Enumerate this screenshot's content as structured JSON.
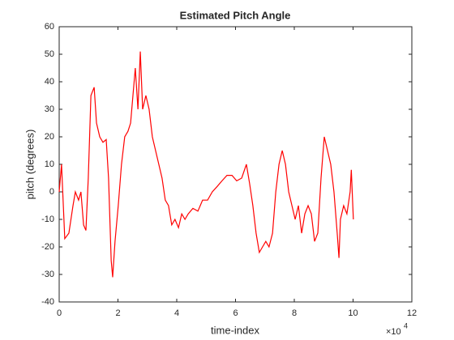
{
  "chart_data": {
    "type": "line",
    "title": "Estimated Pitch Angle",
    "x_label": "time-index",
    "y_label": "pitch (degrees)",
    "x_multiplier": {
      "base": "×10",
      "exponent": "4"
    },
    "xlim": [
      0,
      12
    ],
    "xticks": [
      0,
      2,
      4,
      6,
      8,
      10,
      12
    ],
    "ylim": [
      -40,
      60
    ],
    "yticks": [
      -40,
      -30,
      -20,
      -10,
      0,
      10,
      20,
      30,
      40,
      50,
      60
    ],
    "grid": false,
    "series": [
      {
        "name": "pitch",
        "color": "#ff0000",
        "x": [
          0,
          0.08,
          0.19,
          0.33,
          0.47,
          0.55,
          0.66,
          0.74,
          0.83,
          0.91,
          0.99,
          1.08,
          1.19,
          1.27,
          1.38,
          1.49,
          1.6,
          1.68,
          1.77,
          1.82,
          1.9,
          2.01,
          2.12,
          2.23,
          2.34,
          2.43,
          2.51,
          2.59,
          2.68,
          2.76,
          2.84,
          2.95,
          3.06,
          3.17,
          3.28,
          3.39,
          3.5,
          3.61,
          3.72,
          3.83,
          3.94,
          4.06,
          4.17,
          4.28,
          4.39,
          4.55,
          4.72,
          4.88,
          5.05,
          5.21,
          5.38,
          5.54,
          5.71,
          5.88,
          6.04,
          6.21,
          6.37,
          6.48,
          6.59,
          6.7,
          6.81,
          6.92,
          7.03,
          7.14,
          7.26,
          7.37,
          7.48,
          7.59,
          7.7,
          7.81,
          7.92,
          8.03,
          8.14,
          8.25,
          8.36,
          8.47,
          8.58,
          8.69,
          8.8,
          8.91,
          9.02,
          9.13,
          9.24,
          9.35,
          9.46,
          9.52,
          9.57,
          9.68,
          9.79,
          9.9,
          9.94,
          10.01
        ],
        "values": [
          0,
          10,
          -17,
          -15,
          -5,
          0,
          -3,
          0,
          -12,
          -14,
          5,
          35,
          38,
          25,
          20,
          18,
          19,
          5,
          -25,
          -31,
          -18,
          -5,
          10,
          20,
          22,
          25,
          35,
          45,
          30,
          51,
          30,
          35,
          30,
          20,
          15,
          10,
          5,
          -3,
          -5,
          -12,
          -10,
          -13,
          -8,
          -10,
          -8,
          -6,
          -7,
          -3,
          -3,
          0,
          2,
          4,
          6,
          6,
          4,
          5,
          10,
          3,
          -5,
          -15,
          -22,
          -20,
          -18,
          -20,
          -15,
          0,
          10,
          15,
          10,
          0,
          -5,
          -10,
          -5,
          -15,
          -8,
          -5,
          -8,
          -18,
          -15,
          5,
          20,
          15,
          10,
          0,
          -15,
          -24,
          -10,
          -5,
          -8,
          0,
          8,
          -10
        ]
      }
    ]
  }
}
